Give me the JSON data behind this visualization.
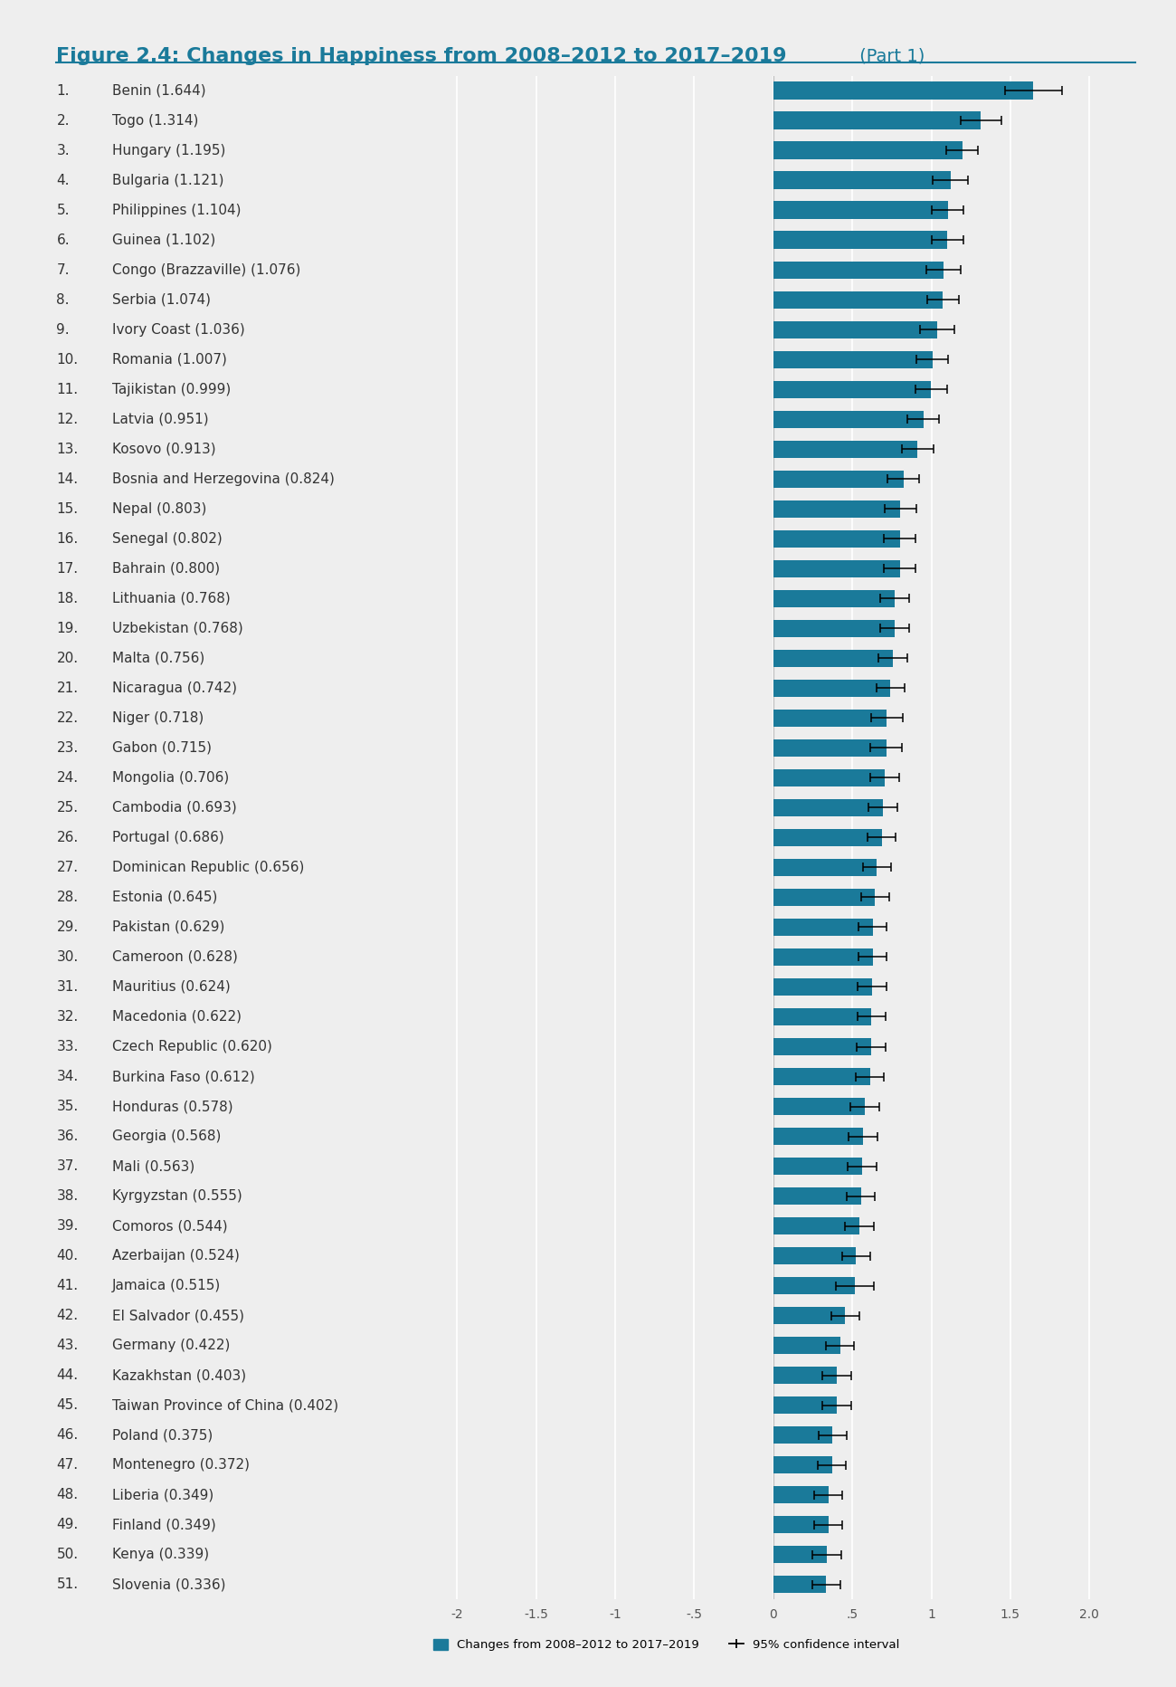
{
  "title_bold": "Figure 2.4: Changes in Happiness from 2008–2012 to 2017–2019",
  "title_normal": " (Part 1)",
  "title_color": "#1a7a9a",
  "background_color": "#eeeeee",
  "bar_color": "#1a7a9a",
  "line_color": "#1a7a9a",
  "countries": [
    "Benin (1.644)",
    "Togo (1.314)",
    "Hungary (1.195)",
    "Bulgaria (1.121)",
    "Philippines (1.104)",
    "Guinea (1.102)",
    "Congo (Brazzaville) (1.076)",
    "Serbia (1.074)",
    "Ivory Coast (1.036)",
    "Romania (1.007)",
    "Tajikistan (0.999)",
    "Latvia (0.951)",
    "Kosovo (0.913)",
    "Bosnia and Herzegovina (0.824)",
    "Nepal (0.803)",
    "Senegal (0.802)",
    "Bahrain (0.800)",
    "Lithuania (0.768)",
    "Uzbekistan (0.768)",
    "Malta (0.756)",
    "Nicaragua (0.742)",
    "Niger (0.718)",
    "Gabon (0.715)",
    "Mongolia (0.706)",
    "Cambodia (0.693)",
    "Portugal (0.686)",
    "Dominican Republic (0.656)",
    "Estonia (0.645)",
    "Pakistan (0.629)",
    "Cameroon (0.628)",
    "Mauritius (0.624)",
    "Macedonia (0.622)",
    "Czech Republic (0.620)",
    "Burkina Faso (0.612)",
    "Honduras (0.578)",
    "Georgia (0.568)",
    "Mali (0.563)",
    "Kyrgyzstan (0.555)",
    "Comoros (0.544)",
    "Azerbaijan (0.524)",
    "Jamaica (0.515)",
    "El Salvador (0.455)",
    "Germany (0.422)",
    "Kazakhstan (0.403)",
    "Taiwan Province of China (0.402)",
    "Poland (0.375)",
    "Montenegro (0.372)",
    "Liberia (0.349)",
    "Finland (0.349)",
    "Kenya (0.339)",
    "Slovenia (0.336)"
  ],
  "values": [
    1.644,
    1.314,
    1.195,
    1.121,
    1.104,
    1.102,
    1.076,
    1.074,
    1.036,
    1.007,
    0.999,
    0.951,
    0.913,
    0.824,
    0.803,
    0.802,
    0.8,
    0.768,
    0.768,
    0.756,
    0.742,
    0.718,
    0.715,
    0.706,
    0.693,
    0.686,
    0.656,
    0.645,
    0.629,
    0.628,
    0.624,
    0.622,
    0.62,
    0.612,
    0.578,
    0.568,
    0.563,
    0.555,
    0.544,
    0.524,
    0.515,
    0.455,
    0.422,
    0.403,
    0.402,
    0.375,
    0.372,
    0.349,
    0.349,
    0.339,
    0.336
  ],
  "errors": [
    0.18,
    0.13,
    0.1,
    0.11,
    0.1,
    0.1,
    0.11,
    0.1,
    0.11,
    0.1,
    0.1,
    0.1,
    0.1,
    0.1,
    0.1,
    0.1,
    0.1,
    0.09,
    0.09,
    0.09,
    0.09,
    0.1,
    0.1,
    0.09,
    0.09,
    0.09,
    0.09,
    0.09,
    0.09,
    0.09,
    0.09,
    0.09,
    0.09,
    0.09,
    0.09,
    0.09,
    0.09,
    0.09,
    0.09,
    0.09,
    0.12,
    0.09,
    0.09,
    0.09,
    0.09,
    0.09,
    0.09,
    0.09,
    0.09,
    0.09,
    0.09
  ],
  "xlim": [
    -2.25,
    2.25
  ],
  "xticks": [
    -2.0,
    -1.5,
    -1.0,
    -0.5,
    0.0,
    0.5,
    1.0,
    1.5,
    2.0
  ],
  "xtick_labels": [
    "-2",
    "-1.5",
    "-1",
    "-.5",
    "0",
    ".5",
    "1",
    "1.5",
    "2.0"
  ],
  "legend_bar_label": "Changes from 2008–2012 to 2017–2019",
  "legend_ci_label": "95% confidence interval",
  "label_fontsize": 11.0,
  "axis_fontsize": 10.0,
  "title_fontsize": 16.0,
  "subtitle_fontsize": 14.0
}
